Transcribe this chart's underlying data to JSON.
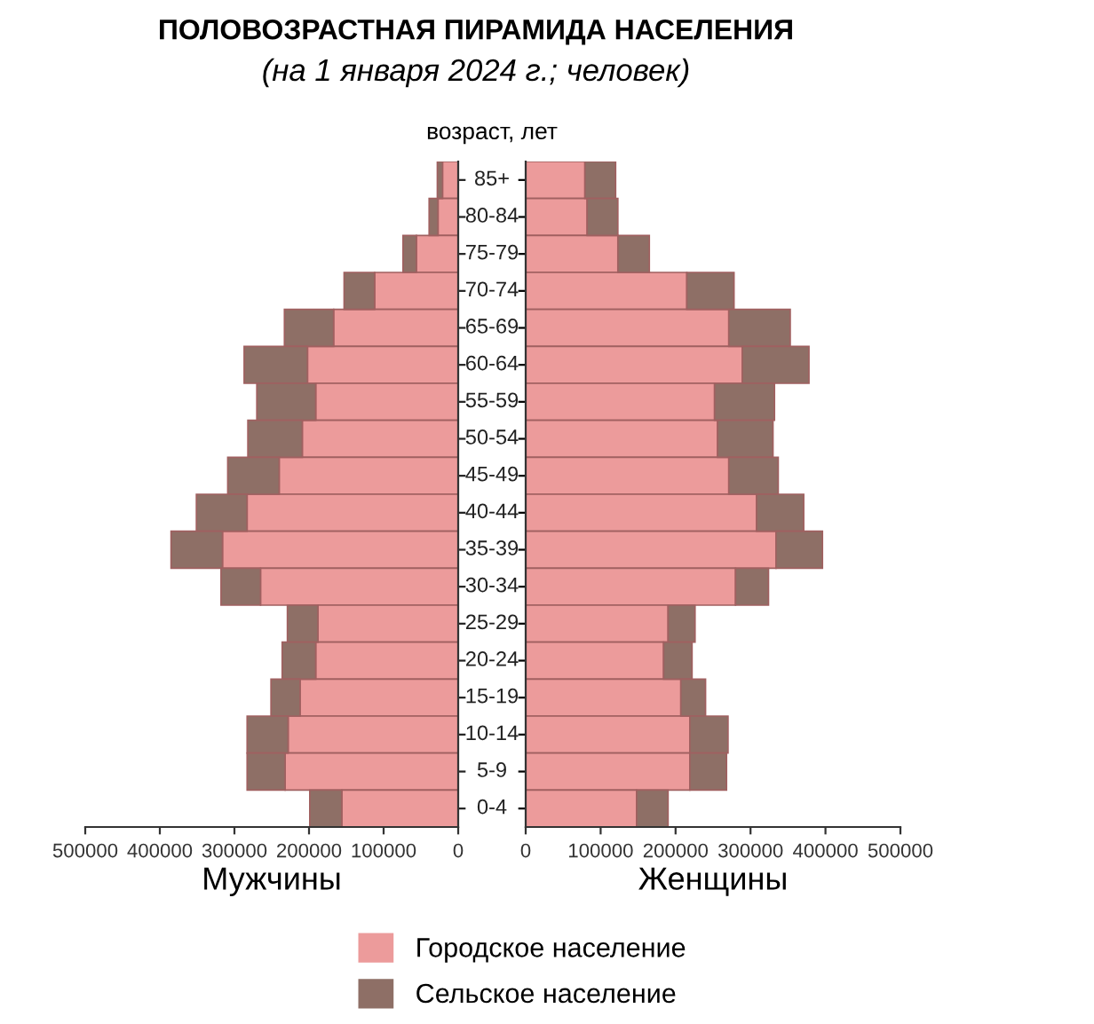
{
  "chart_data": [
    {
      "type": "bar",
      "orientation": "horizontal",
      "stacked": true,
      "title": "ПОЛОВОЗРАСТНАЯ ПИРАМИДА НАСЕЛЕНИЯ",
      "subtitle": "(на 1 января 2024 г.; человек)",
      "xlabel": "Мужчины",
      "ylabel": "возраст, лет",
      "categories": [
        "85+",
        "80-84",
        "75-79",
        "70-74",
        "65-69",
        "60-64",
        "55-59",
        "50-54",
        "45-49",
        "40-44",
        "35-39",
        "30-34",
        "25-29",
        "20-24",
        "15-19",
        "10-14",
        "5-9",
        "0-4"
      ],
      "series": [
        {
          "name": "Городское население",
          "color": "#ec9b9b",
          "values": [
            21000,
            27000,
            56000,
            112000,
            167000,
            202000,
            191000,
            209000,
            240000,
            283000,
            316000,
            265000,
            188000,
            191000,
            212000,
            228000,
            232000,
            156000
          ]
        },
        {
          "name": "Сельское население",
          "color": "#8e6f66",
          "values": [
            7000,
            12000,
            18000,
            41000,
            66000,
            85000,
            79000,
            73000,
            69000,
            68000,
            69000,
            53000,
            41000,
            45000,
            39000,
            55000,
            51000,
            43000
          ]
        }
      ],
      "xlim": [
        500000,
        0
      ],
      "xticks": [
        500000,
        400000,
        300000,
        200000,
        100000,
        0
      ],
      "legend": "bottom"
    },
    {
      "type": "bar",
      "orientation": "horizontal",
      "stacked": true,
      "xlabel": "Женщины",
      "tick_labels": "x",
      "series": [
        {
          "color": "#ec9b9b",
          "values": [
            79000,
            82000,
            123000,
            215000,
            271000,
            289000,
            252000,
            256000,
            271000,
            308000,
            334000,
            280000,
            190000,
            184000,
            207000,
            219000,
            219000,
            148000
          ]
        },
        {
          "color": "#8e6f66",
          "values": [
            41000,
            41000,
            42000,
            63000,
            82000,
            89000,
            80000,
            74000,
            66000,
            63000,
            62000,
            44000,
            36000,
            38000,
            33000,
            51000,
            49000,
            42000
          ]
        }
      ],
      "xlim": [
        0,
        500000
      ],
      "xticks": [
        0,
        100000,
        200000,
        300000,
        400000,
        500000
      ]
    }
  ]
}
